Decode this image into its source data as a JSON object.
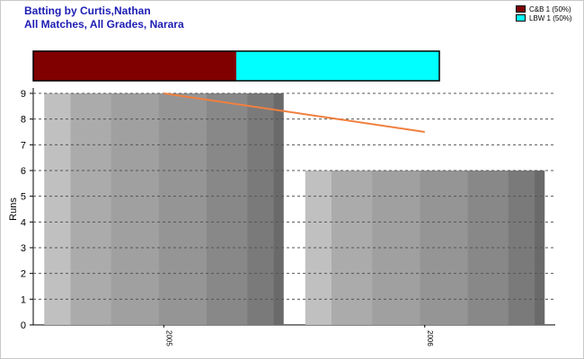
{
  "title": "Batting by Curtis,Nathan",
  "subtitle": "All Matches, All Grades, Narara",
  "legend": [
    {
      "label": "C&B 1 (50%)",
      "color": "#800000"
    },
    {
      "label": "LBW 1 (50%)",
      "color": "#00ffff"
    }
  ],
  "chart_data": [
    {
      "type": "bar",
      "title": "",
      "categories": [
        "C&B",
        "LBW"
      ],
      "values": [
        50,
        50
      ],
      "stacked_percent": true,
      "colors": [
        "#800000",
        "#00ffff"
      ]
    },
    {
      "type": "bar",
      "categories": [
        "2005",
        "2006"
      ],
      "series": [
        {
          "values": [
            9,
            6
          ]
        }
      ],
      "trendline": {
        "x": [
          "2005",
          "2006"
        ],
        "values": [
          9,
          7.5
        ],
        "color": "#f08040"
      },
      "xlabel": "",
      "ylabel": "Runs",
      "ylim": [
        0,
        9
      ],
      "yticks": [
        0,
        1,
        2,
        3,
        4,
        5,
        6,
        7,
        8,
        9
      ],
      "grid": true
    }
  ]
}
